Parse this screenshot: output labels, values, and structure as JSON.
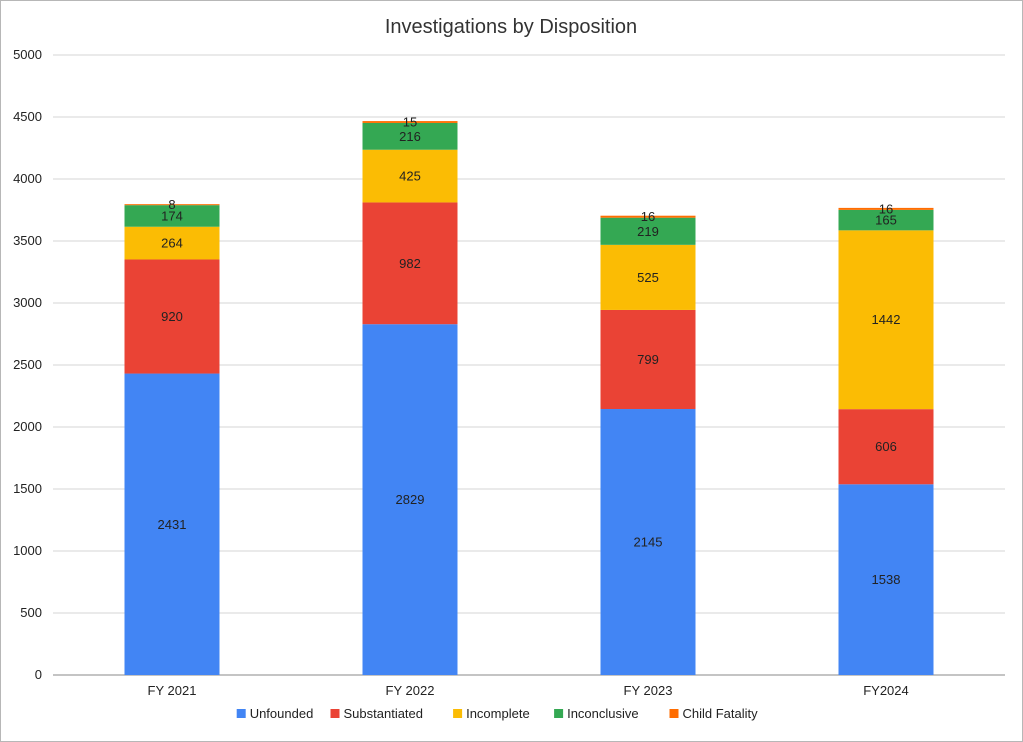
{
  "chart_data": {
    "type": "bar",
    "stacked": true,
    "title": "Investigations by Disposition",
    "xlabel": "",
    "ylabel": "",
    "ylim": [
      0,
      5000
    ],
    "yticks": [
      0,
      500,
      1000,
      1500,
      2000,
      2500,
      3000,
      3500,
      4000,
      4500,
      5000
    ],
    "grid": true,
    "legend_position": "bottom",
    "categories": [
      "FY 2021",
      "FY 2022",
      "FY 2023",
      "FY2024"
    ],
    "series": [
      {
        "name": "Unfounded",
        "color": "#4285f4",
        "values": [
          2431,
          2829,
          2145,
          1538
        ]
      },
      {
        "name": "Substantiated",
        "color": "#ea4335",
        "values": [
          920,
          982,
          799,
          606
        ]
      },
      {
        "name": "Incomplete",
        "color": "#fbbc04",
        "values": [
          264,
          425,
          525,
          1442
        ]
      },
      {
        "name": "Inconclusive",
        "color": "#34a853",
        "values": [
          174,
          216,
          219,
          165
        ]
      },
      {
        "name": "Child Fatality",
        "color": "#ff6d01",
        "values": [
          8,
          15,
          16,
          16
        ]
      }
    ]
  }
}
